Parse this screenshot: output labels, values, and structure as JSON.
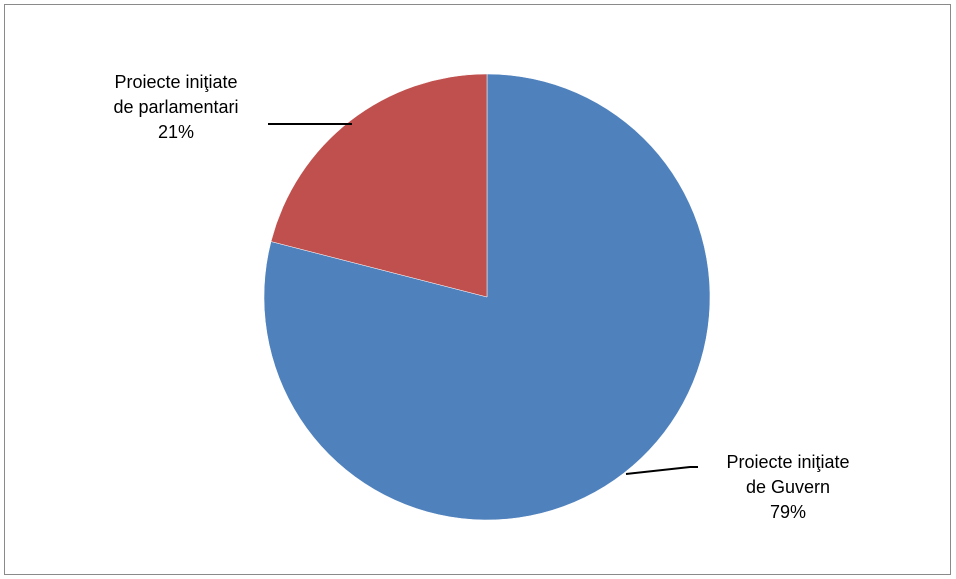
{
  "chart_data": {
    "type": "pie",
    "title": "",
    "start_angle_deg": 0,
    "direction": "clockwise",
    "slices": [
      {
        "name_line1": "Proiecte iniţiate",
        "name_line2": "de Guvern",
        "value": 79,
        "pct_label": "79%",
        "color": "#4F81BD"
      },
      {
        "name_line1": "Proiecte iniţiate",
        "name_line2": "de parlamentari",
        "value": 21,
        "pct_label": "21%",
        "color": "#C0504D"
      }
    ],
    "data_labels": "outside with leader lines",
    "legend": "none"
  }
}
